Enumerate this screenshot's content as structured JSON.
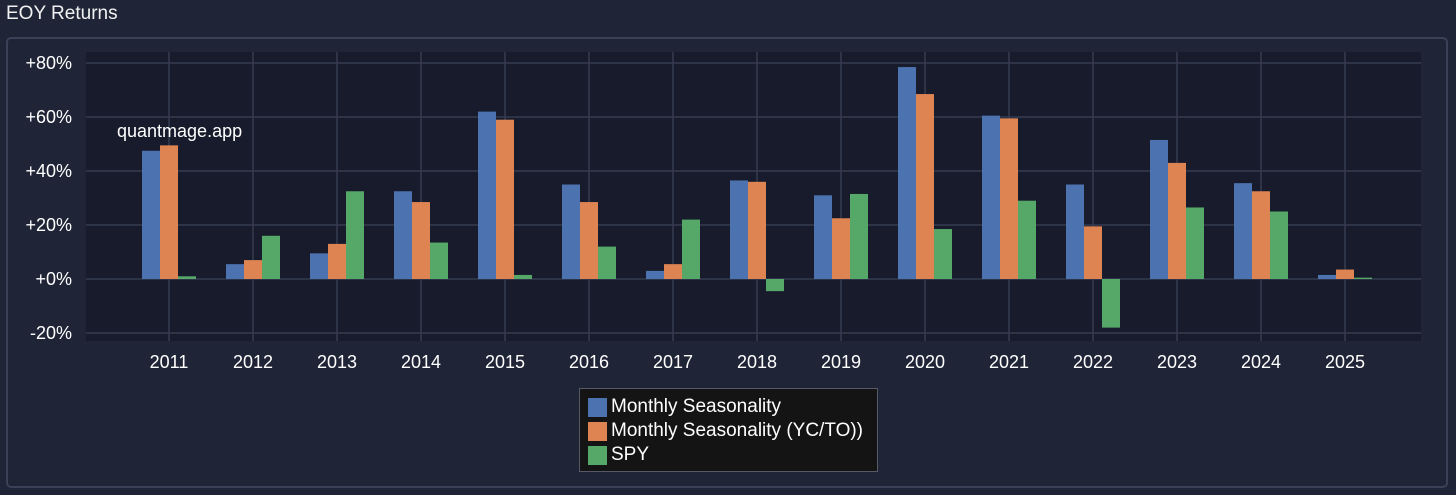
{
  "page": {
    "title": "EOY Returns"
  },
  "chart_data": {
    "type": "bar",
    "watermark": "quantmage.app",
    "categories": [
      "2011",
      "2012",
      "2013",
      "2014",
      "2015",
      "2016",
      "2017",
      "2018",
      "2019",
      "2020",
      "2021",
      "2022",
      "2023",
      "2024",
      "2025"
    ],
    "series": [
      {
        "name": "Monthly Seasonality",
        "color": "#4c72b0",
        "values": [
          47.5,
          5.5,
          9.5,
          32.5,
          62,
          35,
          3,
          36.5,
          31,
          78.5,
          60.5,
          35,
          51.5,
          35.5,
          1.5
        ]
      },
      {
        "name": "Monthly Seasonality (YC/TO))",
        "color": "#dd8452",
        "values": [
          49.5,
          7,
          13,
          28.5,
          59,
          28.5,
          5.5,
          36,
          22.5,
          68.5,
          59.5,
          19.5,
          43,
          32.5,
          3.5
        ]
      },
      {
        "name": "SPY",
        "color": "#55a868",
        "values": [
          1,
          16,
          32.5,
          13.5,
          1.5,
          12,
          22,
          -4.5,
          31.5,
          18.5,
          29,
          -18,
          26.5,
          25,
          0.5
        ]
      }
    ],
    "ylim": [
      -23,
      83
    ],
    "yticks": [
      -20,
      0,
      20,
      40,
      60,
      80
    ],
    "ytick_labels": [
      "-20%",
      "+0%",
      "+20%",
      "+40%",
      "+60%",
      "+80%"
    ],
    "grid": true,
    "legend_position": "bottom-center"
  }
}
